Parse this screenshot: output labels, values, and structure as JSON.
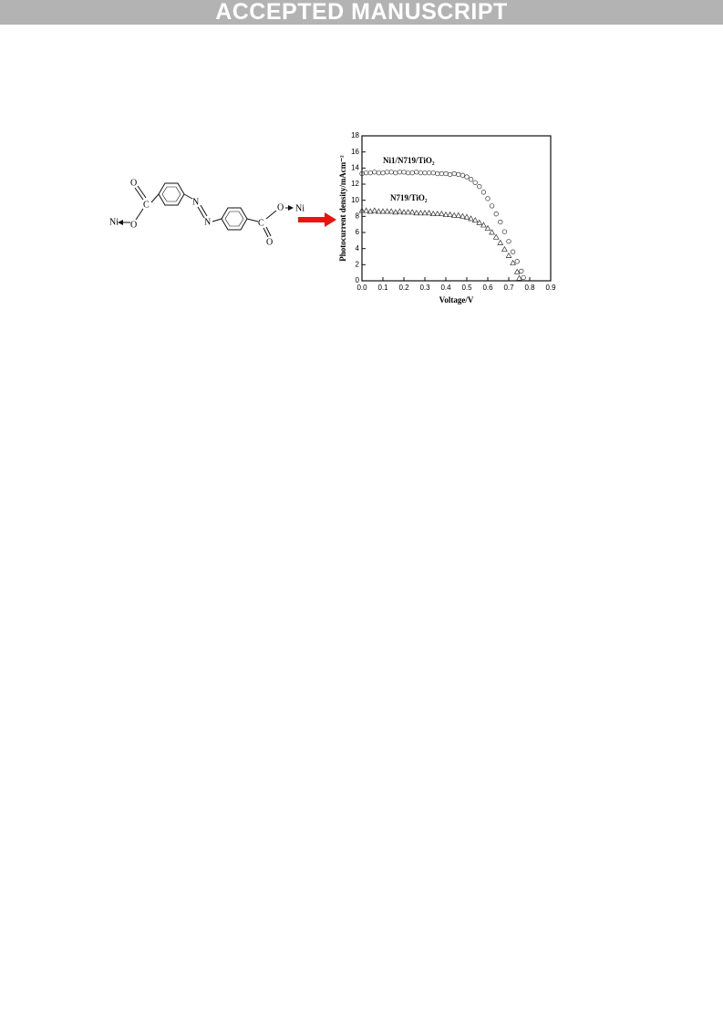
{
  "header": {
    "banner": "ACCEPTED MANUSCRIPT"
  },
  "structure": {
    "labels": [
      "Ni",
      "O",
      "C",
      "O",
      "N",
      "N",
      "C",
      "O",
      "O",
      "Ni"
    ]
  },
  "chart_data": {
    "type": "scatter",
    "x_label": "Voltage/V",
    "y_label": "Photocurrent density/mAcm⁻²",
    "xlim": [
      0,
      0.9
    ],
    "ylim": [
      0,
      18
    ],
    "xticks": [
      {
        "value": 0,
        "label": "0.0"
      },
      0.1,
      0.2,
      0.3,
      0.4,
      0.5,
      0.6,
      0.7,
      0.8,
      0.9
    ],
    "yticks": [
      0,
      2,
      4,
      6,
      8,
      10,
      12,
      14,
      16,
      18
    ],
    "series": [
      {
        "name": "Ni1/N719/TiO₂",
        "color": "#333333",
        "marker": "circle",
        "x": [
          0,
          0.02,
          0.04,
          0.06,
          0.08,
          0.1,
          0.12,
          0.14,
          0.16,
          0.18,
          0.2,
          0.22,
          0.24,
          0.26,
          0.28,
          0.3,
          0.32,
          0.34,
          0.36,
          0.38,
          0.4,
          0.42,
          0.44,
          0.46,
          0.48,
          0.5,
          0.52,
          0.54,
          0.56,
          0.58,
          0.6,
          0.62,
          0.64,
          0.66,
          0.68,
          0.7,
          0.72,
          0.74,
          0.76,
          0.77
        ],
        "values": [
          13.3,
          13.4,
          13.4,
          13.5,
          13.4,
          13.4,
          13.5,
          13.5,
          13.4,
          13.5,
          13.5,
          13.4,
          13.4,
          13.5,
          13.4,
          13.4,
          13.4,
          13.4,
          13.3,
          13.3,
          13.3,
          13.2,
          13.3,
          13.2,
          13.1,
          12.9,
          12.6,
          12.2,
          11.7,
          11.0,
          10.2,
          9.3,
          8.3,
          7.3,
          6.1,
          4.9,
          3.6,
          2.4,
          1.2,
          0.4
        ]
      },
      {
        "name": "N719/TiO₂",
        "color": "#333333",
        "marker": "triangle",
        "x": [
          0,
          0.02,
          0.04,
          0.06,
          0.08,
          0.1,
          0.12,
          0.14,
          0.16,
          0.18,
          0.2,
          0.22,
          0.24,
          0.26,
          0.28,
          0.3,
          0.32,
          0.34,
          0.36,
          0.38,
          0.4,
          0.42,
          0.44,
          0.46,
          0.48,
          0.5,
          0.52,
          0.54,
          0.56,
          0.58,
          0.6,
          0.62,
          0.64,
          0.66,
          0.68,
          0.7,
          0.72,
          0.74,
          0.75
        ],
        "values": [
          8.7,
          8.7,
          8.6,
          8.7,
          8.6,
          8.6,
          8.6,
          8.6,
          8.5,
          8.6,
          8.5,
          8.5,
          8.5,
          8.4,
          8.4,
          8.4,
          8.4,
          8.3,
          8.3,
          8.3,
          8.2,
          8.2,
          8.1,
          8.1,
          8.0,
          7.9,
          7.7,
          7.5,
          7.2,
          6.9,
          6.5,
          6.0,
          5.4,
          4.7,
          3.9,
          3.1,
          2.2,
          1.1,
          0.3
        ]
      }
    ]
  }
}
